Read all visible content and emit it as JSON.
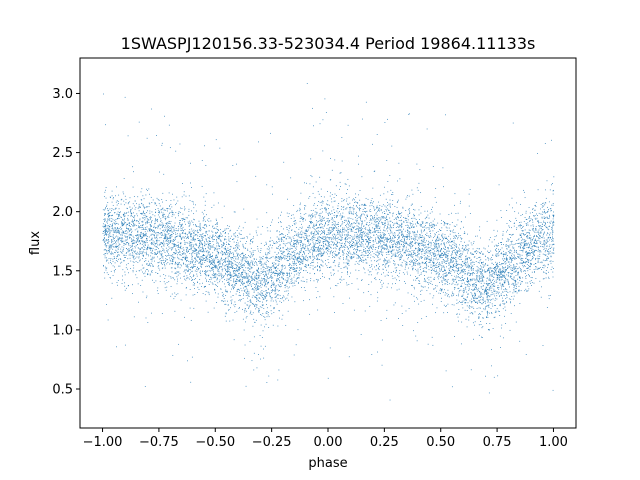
{
  "chart_data": {
    "type": "scatter",
    "title": "1SWASPJ120156.33-523034.4 Period 19864.11133s",
    "xlabel": "phase",
    "ylabel": "flux",
    "xlim": [
      -1.1,
      1.1
    ],
    "ylim": [
      0.17,
      3.3
    ],
    "x_ticks": [
      -1.0,
      -0.75,
      -0.5,
      -0.25,
      0.0,
      0.25,
      0.5,
      0.75,
      1.0
    ],
    "x_tick_labels": [
      "−1.00",
      "−0.75",
      "−0.50",
      "−0.25",
      "0.00",
      "0.25",
      "0.50",
      "0.75",
      "1.00"
    ],
    "y_ticks": [
      0.5,
      1.0,
      1.5,
      2.0,
      2.5,
      3.0
    ],
    "y_tick_labels": [
      "0.5",
      "1.0",
      "1.5",
      "2.0",
      "2.5",
      "3.0"
    ],
    "marker_color": "#1f77b4",
    "grid": false,
    "series": [
      {
        "x_range": [
          -1.0,
          1.0
        ],
        "trend": {
          "phase": [
            -1.0,
            -0.75,
            -0.5,
            -0.3,
            -0.1,
            0.0,
            0.25,
            0.5,
            0.7,
            0.9,
            1.0
          ],
          "flux": [
            1.8,
            1.8,
            1.62,
            1.38,
            1.72,
            1.8,
            1.8,
            1.62,
            1.38,
            1.72,
            1.8
          ]
        }
      }
    ]
  }
}
